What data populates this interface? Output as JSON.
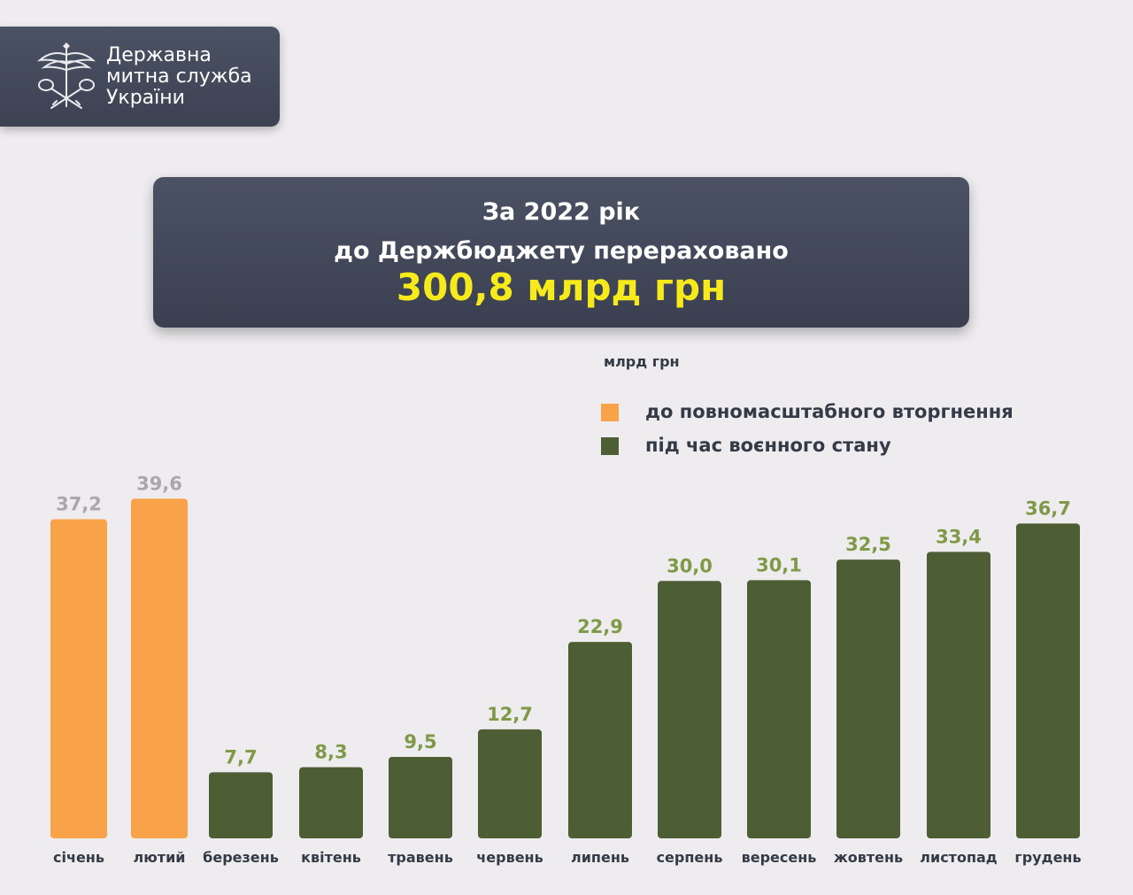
{
  "logo": {
    "lines": [
      "Державна",
      "митна служба",
      "України"
    ]
  },
  "header": {
    "line1": "За 2022 рік",
    "line2": "до Держбюджету перераховано",
    "total": "300,8 млрд грн"
  },
  "colors": {
    "before": "#f8a34a",
    "during": "#4e5e34",
    "label_before": "#a7a7ad",
    "label_during": "#7f9a47",
    "total_highlight": "#f6ea1d"
  },
  "chart_data": {
    "type": "bar",
    "unit": "млрд грн",
    "categories": [
      "січень",
      "лютий",
      "березень",
      "квітень",
      "травень",
      "червень",
      "липень",
      "серпень",
      "вересень",
      "жовтень",
      "листопад",
      "грудень"
    ],
    "values": [
      37.2,
      39.6,
      7.7,
      8.3,
      9.5,
      12.7,
      22.9,
      30.0,
      30.1,
      32.5,
      33.4,
      36.7
    ],
    "value_labels": [
      "37,2",
      "39,6",
      "7,7",
      "8,3",
      "9,5",
      "12,7",
      "22,9",
      "30,0",
      "30,1",
      "32,5",
      "33,4",
      "36,7"
    ],
    "group": [
      "before",
      "before",
      "during",
      "during",
      "during",
      "during",
      "during",
      "during",
      "during",
      "during",
      "during",
      "during"
    ],
    "legend": [
      {
        "key": "before",
        "label": "до повномасштабного вторгнення"
      },
      {
        "key": "during",
        "label": "під час воєнного стану"
      }
    ],
    "legend_position": "top-right",
    "grid": false
  }
}
